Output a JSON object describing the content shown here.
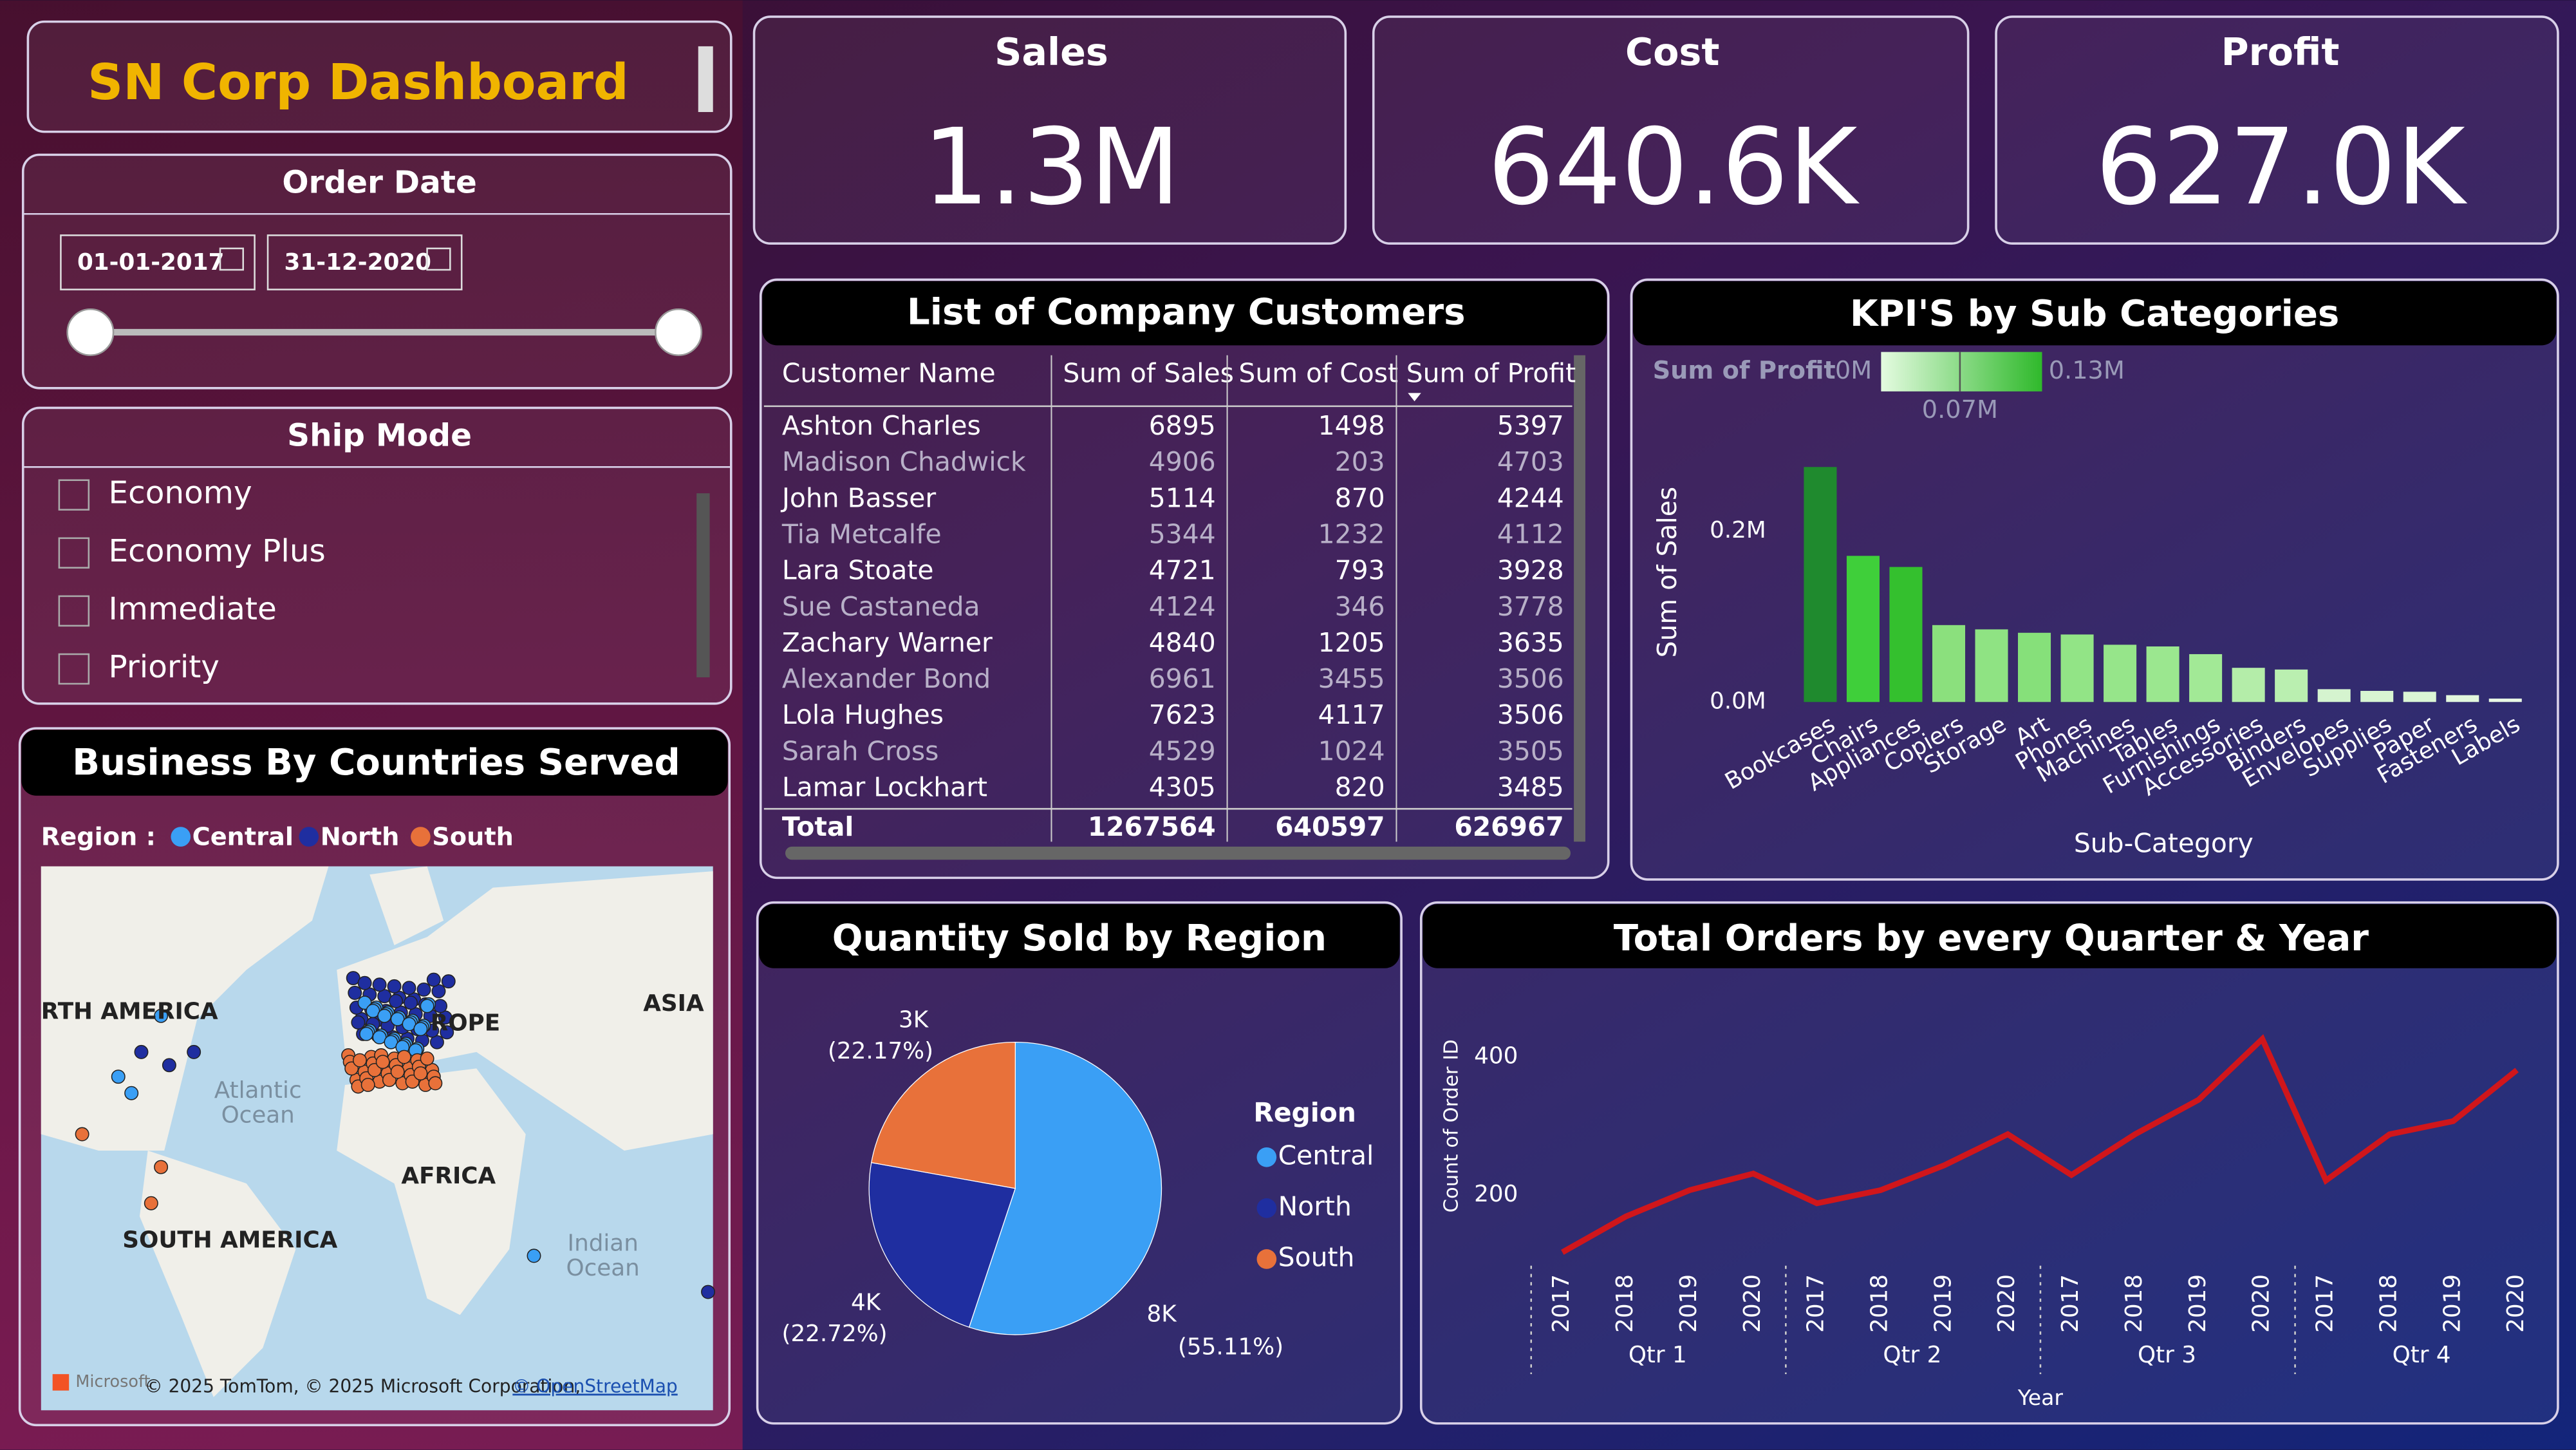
{
  "header": {
    "title": "SN Corp Dashboard"
  },
  "order_date": {
    "title": "Order Date",
    "start": "01-01-2017",
    "end": "31-12-2020"
  },
  "ship_mode": {
    "title": "Ship Mode",
    "options": [
      "Economy",
      "Economy Plus",
      "Immediate",
      "Priority"
    ]
  },
  "kpis": [
    {
      "label": "Sales",
      "value": "1.3M"
    },
    {
      "label": "Cost",
      "value": "640.6K"
    },
    {
      "label": "Profit",
      "value": "627.0K"
    }
  ],
  "table": {
    "title": "List of Company Customers",
    "columns": [
      "Customer Name",
      "Sum of Sales",
      "Sum of Cost",
      "Sum of Profit"
    ],
    "rows": [
      [
        "Ashton Charles",
        6895,
        1498,
        5397
      ],
      [
        "Madison Chadwick",
        4906,
        203,
        4703
      ],
      [
        "John Basser",
        5114,
        870,
        4244
      ],
      [
        "Tia Metcalfe",
        5344,
        1232,
        4112
      ],
      [
        "Lara Stoate",
        4721,
        793,
        3928
      ],
      [
        "Sue Castaneda",
        4124,
        346,
        3778
      ],
      [
        "Zachary Warner",
        4840,
        1205,
        3635
      ],
      [
        "Alexander Bond",
        6961,
        3455,
        3506
      ],
      [
        "Lola Hughes",
        7623,
        4117,
        3506
      ],
      [
        "Sarah Cross",
        4529,
        1024,
        3505
      ],
      [
        "Lamar Lockhart",
        4305,
        820,
        3485
      ]
    ],
    "total": [
      "Total",
      1267564,
      640597,
      626967
    ]
  },
  "map": {
    "title": "Business By Countries Served",
    "legend_title": "Region :",
    "legend": [
      {
        "name": "Central",
        "color": "#3a9ff5"
      },
      {
        "name": "North",
        "color": "#1f2ea0"
      },
      {
        "name": "South",
        "color": "#e8713a"
      }
    ],
    "places": [
      "RTH AMERICA",
      "ROPE",
      "ASIA",
      "Atlantic",
      "Ocean",
      "AFRICA",
      "SOUTH AMERICA",
      "Indian",
      "Ocean"
    ],
    "logo": "Microsoft",
    "attribution": "© 2025 TomTom, © 2025 Microsoft Corporation,",
    "link": "© OpenStreetMap"
  },
  "chart_data": [
    {
      "type": "bar",
      "title": "KPI'S by Sub Categories",
      "x_label": "Sub-Category",
      "y_label": "Sum of Sales",
      "categories": [
        "Bookcases",
        "Chairs",
        "Appliances",
        "Copiers",
        "Storage",
        "Art",
        "Phones",
        "Machines",
        "Tables",
        "Furnishings",
        "Accessories",
        "Binders",
        "Envelopes",
        "Supplies",
        "Paper",
        "Fasteners",
        "Labels"
      ],
      "values": [
        275000,
        171000,
        158000,
        90000,
        85000,
        81000,
        79000,
        67000,
        65000,
        56000,
        40000,
        38000,
        15000,
        13000,
        12000,
        8000,
        4000
      ],
      "colors": [
        "#1f8a2e",
        "#3fcf3a",
        "#34c02e",
        "#8be07d",
        "#8fe383",
        "#86e07a",
        "#92e486",
        "#96e58a",
        "#9be78f",
        "#a2e996",
        "#b4eda9",
        "#baefb0",
        "#d5f4cf",
        "#d8f5d2",
        "#dbf6d5",
        "#e2f7dd",
        "#e8f8e4"
      ],
      "ylim": [
        0,
        300000
      ],
      "yticks": [
        {
          "value": 0,
          "label": "0.0M"
        },
        {
          "value": 200000,
          "label": "0.2M"
        }
      ],
      "color_scale": {
        "title": "Sum of Profit",
        "min": "0M",
        "mid": "0.07M",
        "max": "0.13M",
        "colors": [
          "#e4fbe0",
          "#2fb92b"
        ]
      }
    },
    {
      "type": "pie",
      "title": "Quantity Sold by Region",
      "legend_title": "Region",
      "categories": [
        "Central",
        "North",
        "South"
      ],
      "values": [
        55.11,
        22.72,
        22.17
      ],
      "value_labels": [
        "(55.11%)",
        "(22.72%)",
        "(22.17%)"
      ],
      "quantity_labels": [
        "8K",
        "4K",
        "3K"
      ],
      "colors": [
        "#3a9ff5",
        "#1f2ea0",
        "#e8713a"
      ]
    },
    {
      "type": "line",
      "title": "Total Orders by every Quarter & Year",
      "x_label": "Year",
      "y_label": "Count of Order ID",
      "groups": [
        "Qtr 1",
        "Qtr 2",
        "Qtr 3",
        "Qtr 4"
      ],
      "categories": [
        "2017",
        "2018",
        "2019",
        "2020",
        "2017",
        "2018",
        "2019",
        "2020",
        "2017",
        "2018",
        "2019",
        "2020",
        "2017",
        "2018",
        "2019",
        "2020"
      ],
      "series": [
        {
          "name": "Count of Order ID",
          "color": "#d0161b",
          "values": [
            117,
            169,
            207,
            231,
            188,
            207,
            243,
            288,
            229,
            288,
            338,
            426,
            221,
            288,
            307,
            381
          ]
        }
      ],
      "ylim": [
        0,
        500
      ],
      "yticks": [
        200,
        400
      ]
    }
  ]
}
